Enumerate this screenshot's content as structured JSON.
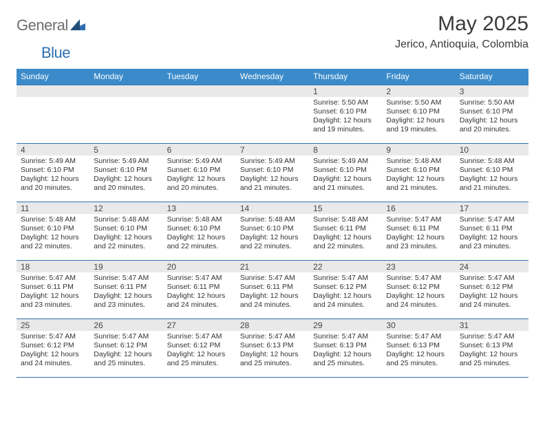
{
  "logo": {
    "text1": "General",
    "text2": "Blue"
  },
  "title": "May 2025",
  "location": "Jerico, Antioquia, Colombia",
  "colors": {
    "header_bg": "#3b8bca",
    "header_text": "#ffffff",
    "week_border": "#2f6fb0",
    "daynum_bg": "#e9e9e9",
    "body_text": "#333333",
    "logo_gray": "#6d6d6d",
    "logo_blue": "#2f6fb0"
  },
  "typography": {
    "month_title_fontsize": 30,
    "location_fontsize": 16,
    "header_fontsize": 12,
    "daynum_fontsize": 12,
    "body_fontsize": 10.5
  },
  "weekdays": [
    "Sunday",
    "Monday",
    "Tuesday",
    "Wednesday",
    "Thursday",
    "Friday",
    "Saturday"
  ],
  "weeks": [
    [
      {
        "num": "",
        "sunrise": "",
        "sunset": "",
        "daylight": ""
      },
      {
        "num": "",
        "sunrise": "",
        "sunset": "",
        "daylight": ""
      },
      {
        "num": "",
        "sunrise": "",
        "sunset": "",
        "daylight": ""
      },
      {
        "num": "",
        "sunrise": "",
        "sunset": "",
        "daylight": ""
      },
      {
        "num": "1",
        "sunrise": "Sunrise: 5:50 AM",
        "sunset": "Sunset: 6:10 PM",
        "daylight": "Daylight: 12 hours and 19 minutes."
      },
      {
        "num": "2",
        "sunrise": "Sunrise: 5:50 AM",
        "sunset": "Sunset: 6:10 PM",
        "daylight": "Daylight: 12 hours and 19 minutes."
      },
      {
        "num": "3",
        "sunrise": "Sunrise: 5:50 AM",
        "sunset": "Sunset: 6:10 PM",
        "daylight": "Daylight: 12 hours and 20 minutes."
      }
    ],
    [
      {
        "num": "4",
        "sunrise": "Sunrise: 5:49 AM",
        "sunset": "Sunset: 6:10 PM",
        "daylight": "Daylight: 12 hours and 20 minutes."
      },
      {
        "num": "5",
        "sunrise": "Sunrise: 5:49 AM",
        "sunset": "Sunset: 6:10 PM",
        "daylight": "Daylight: 12 hours and 20 minutes."
      },
      {
        "num": "6",
        "sunrise": "Sunrise: 5:49 AM",
        "sunset": "Sunset: 6:10 PM",
        "daylight": "Daylight: 12 hours and 20 minutes."
      },
      {
        "num": "7",
        "sunrise": "Sunrise: 5:49 AM",
        "sunset": "Sunset: 6:10 PM",
        "daylight": "Daylight: 12 hours and 21 minutes."
      },
      {
        "num": "8",
        "sunrise": "Sunrise: 5:49 AM",
        "sunset": "Sunset: 6:10 PM",
        "daylight": "Daylight: 12 hours and 21 minutes."
      },
      {
        "num": "9",
        "sunrise": "Sunrise: 5:48 AM",
        "sunset": "Sunset: 6:10 PM",
        "daylight": "Daylight: 12 hours and 21 minutes."
      },
      {
        "num": "10",
        "sunrise": "Sunrise: 5:48 AM",
        "sunset": "Sunset: 6:10 PM",
        "daylight": "Daylight: 12 hours and 21 minutes."
      }
    ],
    [
      {
        "num": "11",
        "sunrise": "Sunrise: 5:48 AM",
        "sunset": "Sunset: 6:10 PM",
        "daylight": "Daylight: 12 hours and 22 minutes."
      },
      {
        "num": "12",
        "sunrise": "Sunrise: 5:48 AM",
        "sunset": "Sunset: 6:10 PM",
        "daylight": "Daylight: 12 hours and 22 minutes."
      },
      {
        "num": "13",
        "sunrise": "Sunrise: 5:48 AM",
        "sunset": "Sunset: 6:10 PM",
        "daylight": "Daylight: 12 hours and 22 minutes."
      },
      {
        "num": "14",
        "sunrise": "Sunrise: 5:48 AM",
        "sunset": "Sunset: 6:10 PM",
        "daylight": "Daylight: 12 hours and 22 minutes."
      },
      {
        "num": "15",
        "sunrise": "Sunrise: 5:48 AM",
        "sunset": "Sunset: 6:11 PM",
        "daylight": "Daylight: 12 hours and 22 minutes."
      },
      {
        "num": "16",
        "sunrise": "Sunrise: 5:47 AM",
        "sunset": "Sunset: 6:11 PM",
        "daylight": "Daylight: 12 hours and 23 minutes."
      },
      {
        "num": "17",
        "sunrise": "Sunrise: 5:47 AM",
        "sunset": "Sunset: 6:11 PM",
        "daylight": "Daylight: 12 hours and 23 minutes."
      }
    ],
    [
      {
        "num": "18",
        "sunrise": "Sunrise: 5:47 AM",
        "sunset": "Sunset: 6:11 PM",
        "daylight": "Daylight: 12 hours and 23 minutes."
      },
      {
        "num": "19",
        "sunrise": "Sunrise: 5:47 AM",
        "sunset": "Sunset: 6:11 PM",
        "daylight": "Daylight: 12 hours and 23 minutes."
      },
      {
        "num": "20",
        "sunrise": "Sunrise: 5:47 AM",
        "sunset": "Sunset: 6:11 PM",
        "daylight": "Daylight: 12 hours and 24 minutes."
      },
      {
        "num": "21",
        "sunrise": "Sunrise: 5:47 AM",
        "sunset": "Sunset: 6:11 PM",
        "daylight": "Daylight: 12 hours and 24 minutes."
      },
      {
        "num": "22",
        "sunrise": "Sunrise: 5:47 AM",
        "sunset": "Sunset: 6:12 PM",
        "daylight": "Daylight: 12 hours and 24 minutes."
      },
      {
        "num": "23",
        "sunrise": "Sunrise: 5:47 AM",
        "sunset": "Sunset: 6:12 PM",
        "daylight": "Daylight: 12 hours and 24 minutes."
      },
      {
        "num": "24",
        "sunrise": "Sunrise: 5:47 AM",
        "sunset": "Sunset: 6:12 PM",
        "daylight": "Daylight: 12 hours and 24 minutes."
      }
    ],
    [
      {
        "num": "25",
        "sunrise": "Sunrise: 5:47 AM",
        "sunset": "Sunset: 6:12 PM",
        "daylight": "Daylight: 12 hours and 24 minutes."
      },
      {
        "num": "26",
        "sunrise": "Sunrise: 5:47 AM",
        "sunset": "Sunset: 6:12 PM",
        "daylight": "Daylight: 12 hours and 25 minutes."
      },
      {
        "num": "27",
        "sunrise": "Sunrise: 5:47 AM",
        "sunset": "Sunset: 6:12 PM",
        "daylight": "Daylight: 12 hours and 25 minutes."
      },
      {
        "num": "28",
        "sunrise": "Sunrise: 5:47 AM",
        "sunset": "Sunset: 6:13 PM",
        "daylight": "Daylight: 12 hours and 25 minutes."
      },
      {
        "num": "29",
        "sunrise": "Sunrise: 5:47 AM",
        "sunset": "Sunset: 6:13 PM",
        "daylight": "Daylight: 12 hours and 25 minutes."
      },
      {
        "num": "30",
        "sunrise": "Sunrise: 5:47 AM",
        "sunset": "Sunset: 6:13 PM",
        "daylight": "Daylight: 12 hours and 25 minutes."
      },
      {
        "num": "31",
        "sunrise": "Sunrise: 5:47 AM",
        "sunset": "Sunset: 6:13 PM",
        "daylight": "Daylight: 12 hours and 25 minutes."
      }
    ]
  ]
}
